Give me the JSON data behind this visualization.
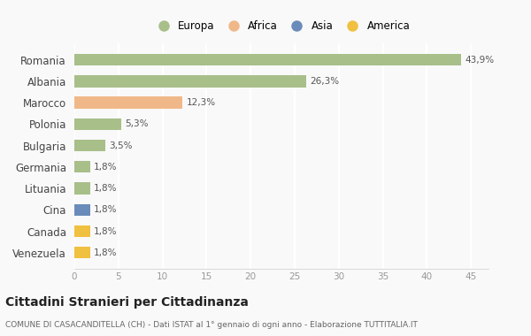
{
  "categories": [
    "Venezuela",
    "Canada",
    "Cina",
    "Lituania",
    "Germania",
    "Bulgaria",
    "Polonia",
    "Marocco",
    "Albania",
    "Romania"
  ],
  "values": [
    1.8,
    1.8,
    1.8,
    1.8,
    1.8,
    3.5,
    5.3,
    12.3,
    26.3,
    43.9
  ],
  "labels": [
    "1,8%",
    "1,8%",
    "1,8%",
    "1,8%",
    "1,8%",
    "3,5%",
    "5,3%",
    "12,3%",
    "26,3%",
    "43,9%"
  ],
  "colors": [
    "#f0c040",
    "#f0c040",
    "#6b8cba",
    "#a8bf8a",
    "#a8bf8a",
    "#a8bf8a",
    "#a8bf8a",
    "#f0b888",
    "#a8bf8a",
    "#a8bf8a"
  ],
  "legend_labels": [
    "Europa",
    "Africa",
    "Asia",
    "America"
  ],
  "legend_colors": [
    "#a8bf8a",
    "#f0b888",
    "#6b8cba",
    "#f0c040"
  ],
  "title": "Cittadini Stranieri per Cittadinanza",
  "subtitle": "COMUNE DI CASACANDITELLA (CH) - Dati ISTAT al 1° gennaio di ogni anno - Elaborazione TUTTITALIA.IT",
  "xlim": [
    0,
    47
  ],
  "background_color": "#f9f9f9",
  "grid_color": "#ffffff",
  "bar_height": 0.55
}
